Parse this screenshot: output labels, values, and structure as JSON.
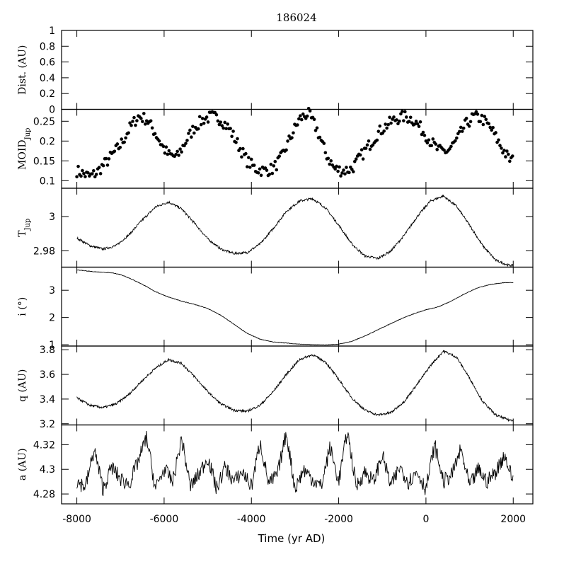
{
  "chart_data": {
    "type": "line",
    "title": "186024",
    "xlabel": "Time (yr AD)",
    "xlim": [
      -8350,
      2450
    ],
    "xticks": [
      -8000,
      -6000,
      -4000,
      -2000,
      0,
      2000
    ],
    "xtick_labels": [
      "-8000",
      "-6000",
      "-4000",
      "-2000",
      "0",
      "2000"
    ],
    "grid": false,
    "panels": [
      {
        "key": "dist",
        "ylabel": "Dist. (AU)",
        "ylim": [
          0,
          1
        ],
        "yticks": [
          0,
          0.2,
          0.4,
          0.6,
          0.8,
          1
        ],
        "ytick_labels": [
          "0",
          "0.2",
          "0.4",
          "0.6",
          "0.8",
          "1"
        ],
        "series": []
      },
      {
        "key": "moid",
        "ylabel": "MOID",
        "ylabel_sub": "Jup",
        "style": "points",
        "ylim": [
          0.081,
          0.28
        ],
        "yticks": [
          0.1,
          0.15,
          0.2,
          0.25
        ],
        "ytick_labels": [
          "0.1",
          "0.15",
          "0.2",
          "0.25"
        ],
        "series": [
          {
            "x": [
              -8000,
              -7700,
              -7550,
              -7300,
              -7000,
              -6800,
              -6600,
              -6400,
              -6200,
              -6000,
              -5900,
              -5700,
              -5500,
              -5300,
              -5100,
              -4900,
              -4700,
              -4500,
              -4300,
              -4100,
              -3900,
              -3700,
              -3500,
              -3300,
              -3100,
              -2900,
              -2700,
              -2500,
              -2300,
              -2100,
              -1900,
              -1700,
              -1500,
              -1300,
              -1100,
              -900,
              -700,
              -500,
              -300,
              -100,
              100,
              300,
              500,
              700,
              900,
              1100,
              1300,
              1500,
              1700,
              1900,
              2000
            ],
            "y": [
              0.125,
              0.11,
              0.12,
              0.15,
              0.19,
              0.23,
              0.262,
              0.255,
              0.22,
              0.18,
              0.165,
              0.16,
              0.2,
              0.235,
              0.255,
              0.262,
              0.255,
              0.23,
              0.19,
              0.15,
              0.13,
              0.125,
              0.13,
              0.16,
              0.21,
              0.255,
              0.27,
              0.23,
              0.17,
              0.13,
              0.125,
              0.13,
              0.16,
              0.19,
              0.22,
              0.24,
              0.255,
              0.262,
              0.255,
              0.23,
              0.2,
              0.175,
              0.175,
              0.2,
              0.24,
              0.262,
              0.255,
              0.23,
              0.19,
              0.155,
              0.15
            ]
          }
        ]
      },
      {
        "key": "tjup",
        "ylabel": "T",
        "ylabel_sub": "Jup",
        "ylim": [
          2.9705,
          3.0165
        ],
        "yticks": [
          2.98,
          3
        ],
        "ytick_labels": [
          "2.98",
          "3"
        ],
        "series": [
          {
            "x": [
              -8000,
              -7700,
              -7400,
              -7100,
              -6800,
              -6500,
              -6200,
              -5900,
              -5600,
              -5300,
              -5000,
              -4700,
              -4400,
              -4100,
              -3800,
              -3500,
              -3200,
              -2900,
              -2600,
              -2300,
              -2000,
              -1700,
              -1400,
              -1100,
              -800,
              -500,
              -200,
              100,
              400,
              700,
              1000,
              1300,
              1600,
              1900,
              2000
            ],
            "y": [
              2.9875,
              2.983,
              2.981,
              2.983,
              2.9895,
              2.998,
              3.0055,
              3.0085,
              3.0045,
              2.996,
              2.987,
              2.981,
              2.9785,
              2.979,
              2.984,
              2.993,
              3.003,
              3.009,
              3.0105,
              3.005,
              2.995,
              2.984,
              2.977,
              2.9755,
              2.98,
              2.989,
              3.0,
              3.009,
              3.012,
              3.006,
              2.995,
              2.983,
              2.9745,
              2.9715,
              2.9715
            ]
          }
        ]
      },
      {
        "key": "i",
        "ylabel": "i (°)",
        "ylim": [
          0.95,
          3.85
        ],
        "yticks": [
          1,
          2,
          3
        ],
        "ytick_labels": [
          "1",
          "2",
          "3"
        ],
        "series": [
          {
            "x": [
              -8000,
              -7600,
              -7200,
              -7000,
              -6800,
              -6500,
              -6200,
              -5900,
              -5600,
              -5300,
              -5000,
              -4700,
              -4400,
              -4100,
              -3800,
              -3500,
              -3200,
              -2900,
              -2600,
              -2300,
              -2000,
              -1700,
              -1400,
              -1100,
              -800,
              -500,
              -200,
              0,
              300,
              600,
              900,
              1200,
              1500,
              1800,
              2000
            ],
            "y": [
              3.75,
              3.68,
              3.64,
              3.58,
              3.45,
              3.22,
              2.95,
              2.75,
              2.6,
              2.48,
              2.33,
              2.08,
              1.75,
              1.42,
              1.2,
              1.1,
              1.06,
              1.02,
              1.0,
              0.99,
              1.02,
              1.12,
              1.32,
              1.55,
              1.78,
              2.0,
              2.18,
              2.28,
              2.4,
              2.62,
              2.88,
              3.1,
              3.22,
              3.28,
              3.28
            ]
          }
        ]
      },
      {
        "key": "q",
        "ylabel": "q (AU)",
        "ylim": [
          3.19,
          3.83
        ],
        "yticks": [
          3.2,
          3.4,
          3.6,
          3.8
        ],
        "ytick_labels": [
          "3.2",
          "3.4",
          "3.6",
          "3.8"
        ],
        "series": [
          {
            "x": [
              -8000,
              -7700,
              -7400,
              -7100,
              -6800,
              -6500,
              -6200,
              -5900,
              -5600,
              -5300,
              -5000,
              -4700,
              -4400,
              -4100,
              -3800,
              -3500,
              -3200,
              -2900,
              -2600,
              -2300,
              -2000,
              -1700,
              -1400,
              -1100,
              -800,
              -500,
              -200,
              100,
              400,
              700,
              1000,
              1300,
              1600,
              1900,
              2000
            ],
            "y": [
              3.41,
              3.35,
              3.33,
              3.36,
              3.44,
              3.55,
              3.65,
              3.72,
              3.69,
              3.58,
              3.46,
              3.36,
              3.31,
              3.3,
              3.35,
              3.46,
              3.6,
              3.72,
              3.76,
              3.7,
              3.56,
              3.41,
              3.31,
              3.27,
              3.29,
              3.38,
              3.52,
              3.67,
              3.79,
              3.74,
              3.57,
              3.38,
              3.27,
              3.23,
              3.23
            ]
          }
        ]
      },
      {
        "key": "a",
        "ylabel": "a (AU)",
        "ylim": [
          4.272,
          4.336
        ],
        "yticks": [
          4.28,
          4.3,
          4.32
        ],
        "ytick_labels": [
          "4.28",
          "4.3",
          "4.32"
        ],
        "series": [
          {
            "x": [
              -8000,
              -7800,
              -7600,
              -7400,
              -7200,
              -7000,
              -6800,
              -6600,
              -6400,
              -6200,
              -6000,
              -5800,
              -5600,
              -5400,
              -5200,
              -5000,
              -4800,
              -4600,
              -4400,
              -4200,
              -4000,
              -3800,
              -3600,
              -3400,
              -3200,
              -3000,
              -2800,
              -2600,
              -2400,
              -2200,
              -2000,
              -1800,
              -1600,
              -1400,
              -1200,
              -1000,
              -800,
              -600,
              -400,
              -200,
              0,
              200,
              400,
              600,
              800,
              1000,
              1200,
              1400,
              1600,
              1800,
              2000
            ],
            "y": [
              4.29,
              4.286,
              4.316,
              4.284,
              4.302,
              4.292,
              4.288,
              4.306,
              4.326,
              4.284,
              4.3,
              4.29,
              4.325,
              4.286,
              4.296,
              4.31,
              4.284,
              4.302,
              4.29,
              4.298,
              4.286,
              4.322,
              4.288,
              4.296,
              4.33,
              4.284,
              4.3,
              4.292,
              4.286,
              4.318,
              4.29,
              4.331,
              4.286,
              4.298,
              4.29,
              4.312,
              4.286,
              4.302,
              4.29,
              4.298,
              4.284,
              4.32,
              4.29,
              4.296,
              4.316,
              4.286,
              4.3,
              4.29,
              4.298,
              4.312,
              4.29
            ]
          }
        ]
      }
    ]
  }
}
